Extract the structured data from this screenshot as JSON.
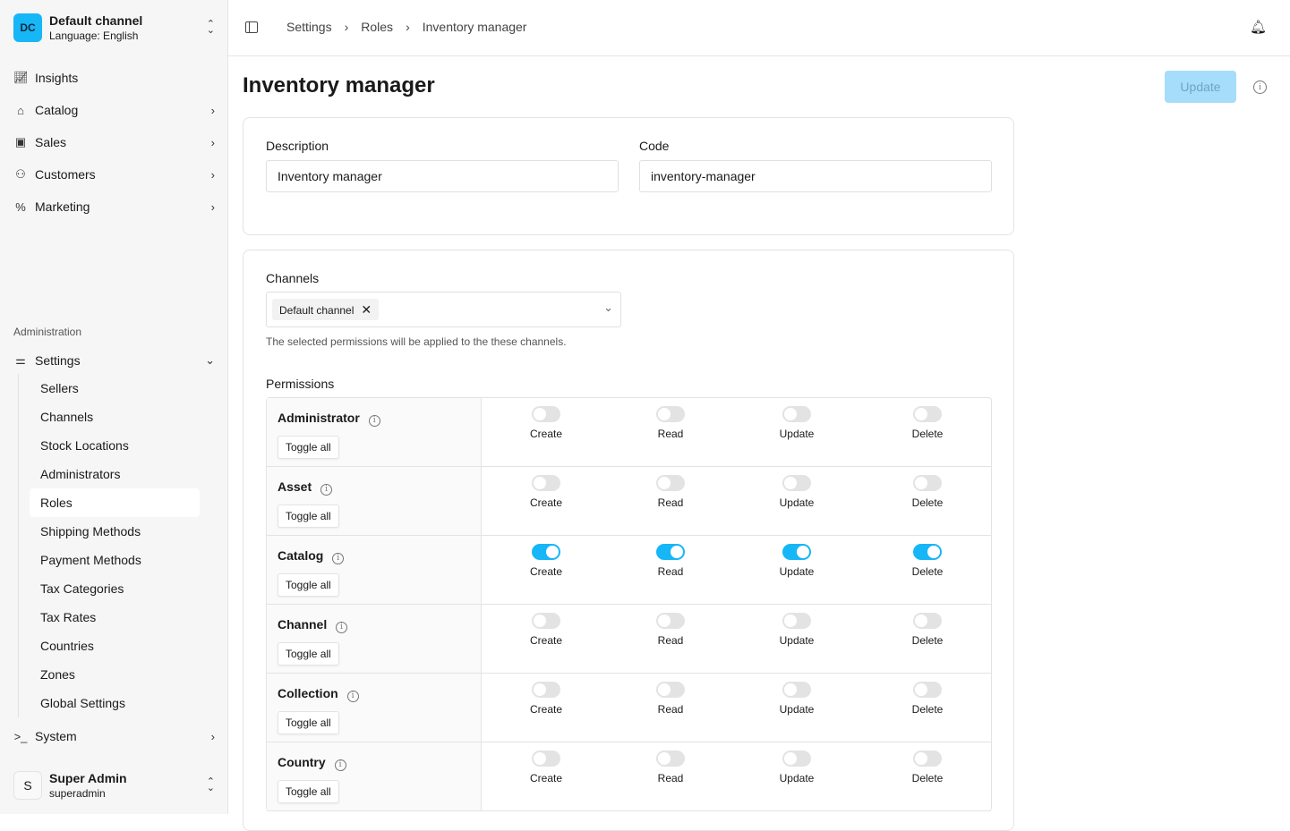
{
  "sidebar": {
    "channel": {
      "initials": "DC",
      "name": "Default channel",
      "language": "Language: English"
    },
    "nav": [
      {
        "label": "Insights",
        "icon": "chart-icon"
      },
      {
        "label": "Catalog",
        "icon": "tag-icon"
      },
      {
        "label": "Sales",
        "icon": "shopping-bag-icon"
      },
      {
        "label": "Customers",
        "icon": "users-icon"
      },
      {
        "label": "Marketing",
        "icon": "percent-icon"
      }
    ],
    "section": "Administration",
    "settings": "Settings",
    "settings_items": [
      "Sellers",
      "Channels",
      "Stock Locations",
      "Administrators",
      "Roles",
      "Shipping Methods",
      "Payment Methods",
      "Tax Categories",
      "Tax Rates",
      "Countries",
      "Zones",
      "Global Settings"
    ],
    "active": "Roles",
    "system": "System",
    "user": {
      "initial": "S",
      "name": "Super Admin",
      "username": "superadmin"
    }
  },
  "breadcrumb": [
    "Settings",
    "Roles",
    "Inventory manager"
  ],
  "page": {
    "title": "Inventory manager",
    "update": "Update"
  },
  "form": {
    "description_label": "Description",
    "description": "Inventory manager",
    "code_label": "Code",
    "code": "inventory-manager"
  },
  "channels": {
    "label": "Channels",
    "selected": "Default channel",
    "hint": "The selected permissions will be applied to the these channels."
  },
  "permissions": {
    "label": "Permissions",
    "toggle_all": "Toggle all",
    "columns": [
      "Create",
      "Read",
      "Update",
      "Delete"
    ],
    "rows": [
      {
        "name": "Administrator",
        "values": [
          false,
          false,
          false,
          false
        ]
      },
      {
        "name": "Asset",
        "values": [
          false,
          false,
          false,
          false
        ]
      },
      {
        "name": "Catalog",
        "values": [
          true,
          true,
          true,
          true
        ]
      },
      {
        "name": "Channel",
        "values": [
          false,
          false,
          false,
          false
        ]
      },
      {
        "name": "Collection",
        "values": [
          false,
          false,
          false,
          false
        ]
      },
      {
        "name": "Country",
        "values": [
          false,
          false,
          false,
          false
        ]
      }
    ]
  },
  "colors": {
    "accent": "#17b6f7"
  }
}
